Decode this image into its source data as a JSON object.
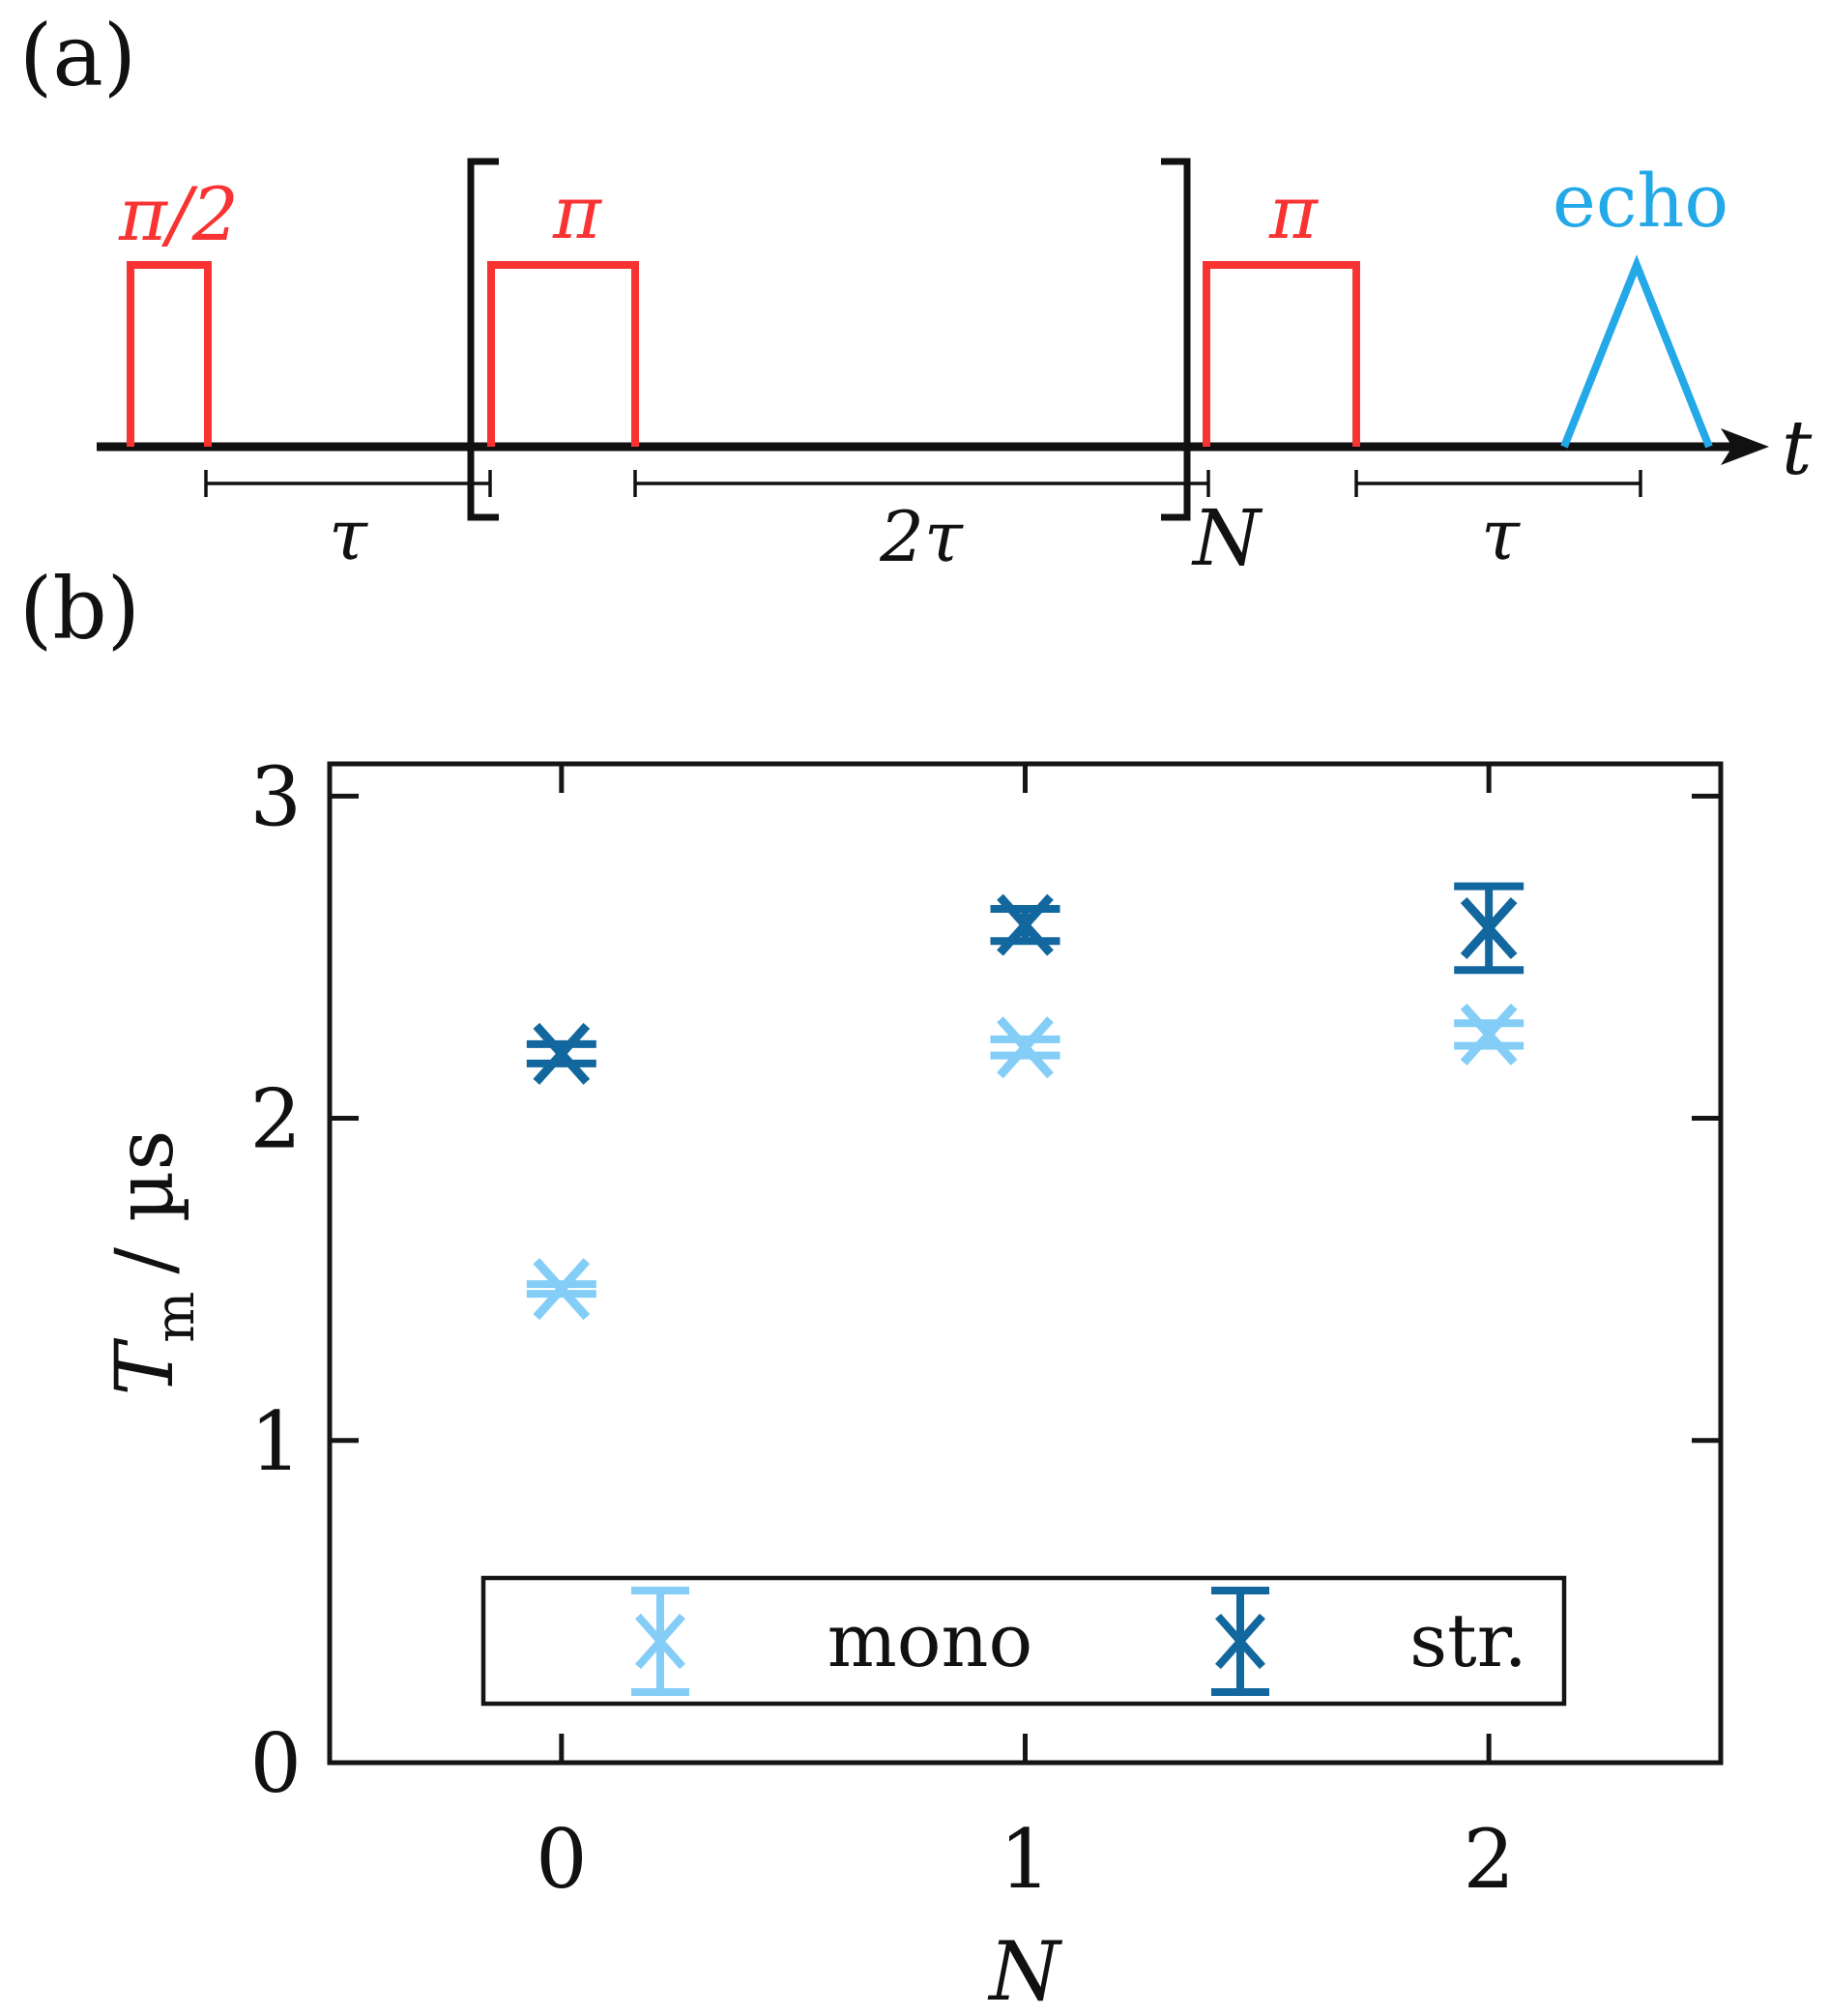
{
  "figure": {
    "background": "#ffffff"
  },
  "panel_a": {
    "label": "(a)",
    "pulse_half_label": "π/2",
    "pulse_pi1_label": "π",
    "pulse_pi2_label": "π",
    "echo_label": "echo",
    "time_axis_label": "t",
    "interval_tau1_label": "τ",
    "interval_2tau_label": "2τ",
    "interval_tau2_label": "τ",
    "bracket_repeat_label": "N",
    "colors": {
      "pulse": "#f93232",
      "echo": "#23a8e8",
      "line": "#111111"
    }
  },
  "panel_b": {
    "label": "(b)",
    "ylabel_symbol": "T",
    "ylabel_subscript": "m",
    "ylabel_units": "/ µs"
  },
  "chart_data": {
    "type": "scatter",
    "title": "",
    "xlabel": "N",
    "ylabel": "T_m / µs",
    "x": [
      0,
      1,
      2
    ],
    "xticks": [
      0,
      1,
      2
    ],
    "yticks": [
      0,
      1,
      2,
      3
    ],
    "xlim": [
      -0.5,
      2.5
    ],
    "ylim": [
      0,
      3.1
    ],
    "grid": false,
    "legend_position": "inside-bottom-center",
    "marker": "x with error bars",
    "series": [
      {
        "name": "mono",
        "color": "#83cdf7",
        "values": [
          1.47,
          2.22,
          2.26
        ],
        "errors": [
          0.015,
          0.025,
          0.035
        ]
      },
      {
        "name": "str.",
        "color": "#12689e",
        "values": [
          2.2,
          2.6,
          2.59
        ],
        "errors": [
          0.03,
          0.05,
          0.13
        ]
      }
    ]
  }
}
